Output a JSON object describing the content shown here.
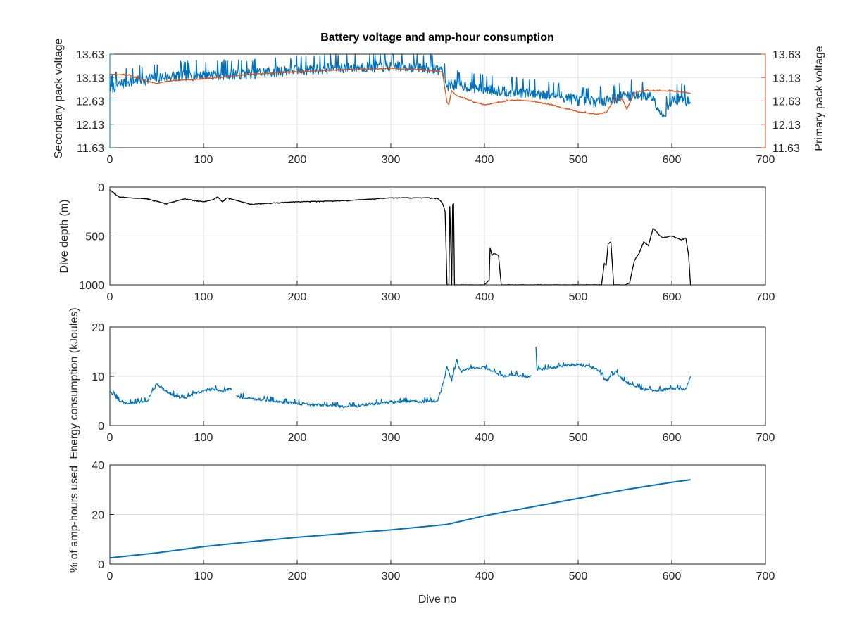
{
  "colors": {
    "blue": "#0072BD",
    "orange": "#D95319",
    "black": "#000000",
    "axis": "#262626",
    "grid": "#dfdfdf"
  },
  "chart_data": [
    {
      "type": "line",
      "title": "Battery voltage and amp-hour consumption",
      "xlim": [
        0,
        700
      ],
      "xticks": [
        "0",
        "100",
        "200",
        "300",
        "400",
        "500",
        "600",
        "700"
      ],
      "ylabel_left": "Secondary pack voltage",
      "ylabel_right": "Primary pack voltage",
      "ylim": [
        11.63,
        13.63
      ],
      "yticks": [
        "11.63",
        "12.13",
        "12.63",
        "13.13",
        "13.63"
      ],
      "yticks_right": [
        "11.63",
        "12.13",
        "12.63",
        "13.13",
        "13.63"
      ],
      "grid": true,
      "series": [
        {
          "axis": "left",
          "color": "#0072BD",
          "noise": 0.28,
          "x": [
            0,
            20,
            40,
            60,
            80,
            100,
            150,
            200,
            250,
            300,
            340,
            355,
            360,
            365,
            380,
            400,
            420,
            450,
            480,
            500,
            520,
            540,
            560,
            580,
            590,
            600,
            610,
            620
          ],
          "y": [
            12.9,
            13.05,
            13.1,
            13.15,
            13.18,
            13.2,
            13.22,
            13.3,
            13.35,
            13.38,
            13.35,
            13.3,
            12.95,
            13.0,
            12.95,
            12.9,
            12.85,
            12.8,
            12.75,
            12.65,
            12.62,
            12.7,
            12.78,
            12.72,
            12.3,
            12.65,
            12.7,
            12.6
          ]
        },
        {
          "axis": "right",
          "color": "#D95319",
          "noise": 0.02,
          "x": [
            0,
            20,
            40,
            50,
            60,
            80,
            100,
            150,
            200,
            250,
            300,
            330,
            355,
            360,
            362,
            365,
            370,
            390,
            400,
            430,
            450,
            470,
            500,
            520,
            530,
            540,
            548,
            552,
            560,
            570,
            600,
            620
          ],
          "y": [
            13.2,
            13.18,
            13.05,
            13.0,
            13.05,
            13.08,
            13.1,
            13.2,
            13.25,
            13.3,
            13.32,
            13.3,
            13.25,
            12.6,
            12.55,
            12.85,
            12.75,
            12.6,
            12.55,
            12.65,
            12.63,
            12.55,
            12.4,
            12.35,
            12.38,
            12.7,
            12.65,
            12.45,
            12.8,
            12.85,
            12.84,
            12.8
          ]
        }
      ]
    },
    {
      "type": "line",
      "title": "",
      "xlim": [
        0,
        700
      ],
      "xticks": [
        "0",
        "100",
        "200",
        "300",
        "400",
        "500",
        "600",
        "700"
      ],
      "ylabel": "Dive depth (m)",
      "ylim": [
        0,
        1000
      ],
      "y_reversed": true,
      "yticks": [
        "0",
        "500",
        "1000"
      ],
      "grid": true,
      "series": [
        {
          "color": "#000000",
          "noise": 6,
          "x": [
            0,
            10,
            20,
            40,
            60,
            80,
            100,
            110,
            115,
            120,
            125,
            150,
            200,
            250,
            300,
            340,
            350,
            355,
            358,
            360,
            362,
            363,
            365,
            366,
            367,
            368,
            370,
            400,
            405,
            406,
            408,
            410,
            415,
            418,
            420,
            450,
            500,
            525,
            528,
            530,
            532,
            535,
            538,
            540,
            550,
            555,
            560,
            565,
            570,
            575,
            580,
            590,
            600,
            610,
            615,
            618,
            620
          ],
          "y": [
            30,
            100,
            110,
            120,
            170,
            120,
            150,
            130,
            100,
            150,
            110,
            175,
            150,
            140,
            110,
            110,
            115,
            160,
            250,
            1000,
            1000,
            200,
            1000,
            180,
            170,
            1000,
            1000,
            1000,
            950,
            620,
            700,
            680,
            700,
            1000,
            1000,
            1000,
            1000,
            1000,
            780,
            800,
            580,
            560,
            1000,
            1000,
            1000,
            980,
            750,
            680,
            560,
            600,
            420,
            520,
            500,
            540,
            520,
            700,
            1000
          ]
        }
      ]
    },
    {
      "type": "line",
      "title": "",
      "xlim": [
        0,
        700
      ],
      "xticks": [
        "0",
        "100",
        "200",
        "300",
        "400",
        "500",
        "600",
        "700"
      ],
      "ylabel": "Energy consumption (kJoules)",
      "ylim": [
        0,
        20
      ],
      "yticks": [
        "0",
        "10",
        "20"
      ],
      "grid": true,
      "series": [
        {
          "color": "#0072BD",
          "noise": 0.7,
          "x": [
            0,
            10,
            20,
            40,
            50,
            60,
            70,
            80,
            90,
            100,
            110,
            120,
            130,
            131,
            135,
            150,
            200,
            250,
            300,
            350,
            355,
            360,
            365,
            370,
            375,
            380,
            400,
            420,
            430,
            440,
            450,
            451,
            455,
            456,
            460,
            480,
            500,
            520,
            530,
            540,
            550,
            560,
            570,
            580,
            600,
            615,
            620
          ],
          "y": [
            7,
            5,
            4.5,
            5,
            8.5,
            7,
            6,
            5.5,
            6.5,
            7,
            7.5,
            7,
            7.5,
            null,
            6,
            5.5,
            4.5,
            3.8,
            4.8,
            5,
            8,
            12,
            9,
            13,
            11,
            11.5,
            11.8,
            10,
            10.5,
            10,
            10,
            null,
            16,
            11.5,
            11.5,
            12,
            12.5,
            11.5,
            9,
            11,
            9,
            8,
            7.5,
            7,
            7.5,
            7.5,
            10
          ]
        }
      ]
    },
    {
      "type": "line",
      "title": "",
      "xlim": [
        0,
        700
      ],
      "xticks": [
        "0",
        "100",
        "200",
        "300",
        "400",
        "500",
        "600",
        "700"
      ],
      "xlabel": "Dive no",
      "ylabel": "% of amp-hours used",
      "ylim": [
        0,
        40
      ],
      "yticks": [
        "0",
        "20",
        "40"
      ],
      "grid": true,
      "series": [
        {
          "color": "#0072BD",
          "noise": 0,
          "width": 2,
          "x": [
            0,
            50,
            100,
            150,
            200,
            250,
            300,
            360,
            400,
            450,
            500,
            550,
            600,
            620
          ],
          "y": [
            2.5,
            4.5,
            7,
            9,
            10.8,
            12.3,
            13.8,
            16,
            19.5,
            23,
            26.5,
            30,
            33,
            34
          ]
        }
      ]
    }
  ]
}
